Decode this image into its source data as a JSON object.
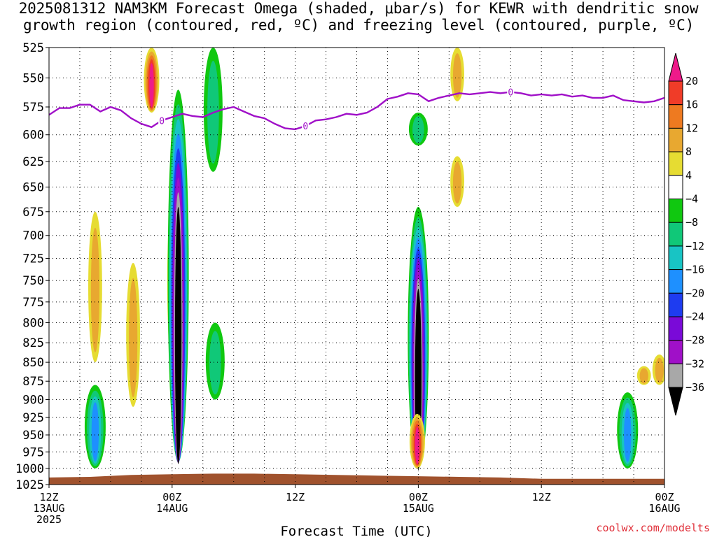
{
  "title": {
    "line1": "2025081312 NAM3KM Forecast Omega (shaded, μbar/s) for KEWR with dendritic snow",
    "line2": "growth region (contoured, red, ºC) and freezing level (contoured, purple, ºC)"
  },
  "credit": "coolwx.com/modelts",
  "chart_data": {
    "type": "heatmap",
    "title": "2025081312 NAM3KM Forecast Omega (shaded, μbar/s) for KEWR with dendritic snow growth region (contoured, red, ºC) and freezing level (contoured, purple, ºC)",
    "xlabel": "Forecast Time (UTC)",
    "ylabel": "",
    "x_unit": "hours from 2025-08-13 12Z",
    "xlim": [
      0,
      60
    ],
    "x_ticks": [
      {
        "x": 0,
        "label": [
          "12Z",
          "13AUG",
          "2025"
        ]
      },
      {
        "x": 12,
        "label": [
          "00Z",
          "14AUG"
        ]
      },
      {
        "x": 24,
        "label": [
          "12Z"
        ]
      },
      {
        "x": 36,
        "label": [
          "00Z",
          "15AUG"
        ]
      },
      {
        "x": 48,
        "label": [
          "12Z"
        ]
      },
      {
        "x": 60,
        "label": [
          "00Z",
          "16AUG"
        ]
      }
    ],
    "y_scale": "log",
    "ylim": [
      1025,
      525
    ],
    "y_ticks": [
      525,
      550,
      575,
      600,
      625,
      650,
      675,
      700,
      725,
      750,
      775,
      800,
      825,
      850,
      875,
      900,
      925,
      950,
      975,
      1000,
      1025
    ],
    "grid": true,
    "colorbar": {
      "placement": "right",
      "levels": [
        {
          "lo": 20,
          "hi": null,
          "color": "#ee1a8a"
        },
        {
          "lo": 16,
          "hi": 20,
          "color": "#f03c28"
        },
        {
          "lo": 12,
          "hi": 16,
          "color": "#ee7a20"
        },
        {
          "lo": 8,
          "hi": 12,
          "color": "#e8a830"
        },
        {
          "lo": 4,
          "hi": 8,
          "color": "#e6dc32"
        },
        {
          "lo": -4,
          "hi": 4,
          "color": "#ffffff"
        },
        {
          "lo": -8,
          "hi": -4,
          "color": "#10c810"
        },
        {
          "lo": -12,
          "hi": -8,
          "color": "#10c878"
        },
        {
          "lo": -16,
          "hi": -12,
          "color": "#18c4c4"
        },
        {
          "lo": -20,
          "hi": -16,
          "color": "#1e90ff"
        },
        {
          "lo": -24,
          "hi": -20,
          "color": "#1e3cf0"
        },
        {
          "lo": -28,
          "hi": -24,
          "color": "#7a0ad8"
        },
        {
          "lo": -32,
          "hi": -28,
          "color": "#a010c8"
        },
        {
          "lo": -36,
          "hi": -32,
          "color": "#a8a8a8"
        },
        {
          "lo": null,
          "hi": -36,
          "color": "#000000"
        }
      ],
      "tick_labels": [
        "20",
        "16",
        "12",
        "8",
        "4",
        "−4",
        "−8",
        "−12",
        "−16",
        "−20",
        "−24",
        "−28",
        "−32",
        "−36"
      ]
    },
    "freezing_level": {
      "color": "#a010c8",
      "label": "0",
      "label_at_x": [
        11,
        25,
        45
      ],
      "points": [
        [
          0,
          582
        ],
        [
          1,
          576
        ],
        [
          2,
          576
        ],
        [
          3,
          573
        ],
        [
          4,
          573
        ],
        [
          5,
          579
        ],
        [
          6,
          575
        ],
        [
          7,
          578
        ],
        [
          8,
          585
        ],
        [
          9,
          590
        ],
        [
          10,
          593
        ],
        [
          11,
          587
        ],
        [
          12,
          584
        ],
        [
          13,
          581
        ],
        [
          14,
          583
        ],
        [
          15,
          584
        ],
        [
          16,
          580
        ],
        [
          17,
          577
        ],
        [
          18,
          575
        ],
        [
          19,
          579
        ],
        [
          20,
          583
        ],
        [
          21,
          585
        ],
        [
          22,
          590
        ],
        [
          23,
          594
        ],
        [
          24,
          595
        ],
        [
          25,
          592
        ],
        [
          26,
          587
        ],
        [
          27,
          586
        ],
        [
          28,
          584
        ],
        [
          29,
          581
        ],
        [
          30,
          582
        ],
        [
          31,
          580
        ],
        [
          32,
          575
        ],
        [
          33,
          568
        ],
        [
          34,
          566
        ],
        [
          35,
          563
        ],
        [
          36,
          564
        ],
        [
          37,
          570
        ],
        [
          38,
          567
        ],
        [
          39,
          565
        ],
        [
          40,
          563
        ],
        [
          41,
          564
        ],
        [
          42,
          563
        ],
        [
          43,
          562
        ],
        [
          44,
          563
        ],
        [
          45,
          562
        ],
        [
          46,
          563
        ],
        [
          47,
          565
        ],
        [
          48,
          564
        ],
        [
          49,
          565
        ],
        [
          50,
          564
        ],
        [
          51,
          566
        ],
        [
          52,
          565
        ],
        [
          53,
          567
        ],
        [
          54,
          567
        ],
        [
          55,
          565
        ],
        [
          56,
          569
        ],
        [
          57,
          570
        ],
        [
          58,
          571
        ],
        [
          59,
          570
        ],
        [
          60,
          567
        ]
      ]
    },
    "terrain": {
      "color": "#a0522d",
      "points": [
        [
          0,
          1014
        ],
        [
          4,
          1013
        ],
        [
          8,
          1010
        ],
        [
          12,
          1009
        ],
        [
          16,
          1008
        ],
        [
          20,
          1008
        ],
        [
          24,
          1009
        ],
        [
          28,
          1010
        ],
        [
          32,
          1011
        ],
        [
          36,
          1012
        ],
        [
          40,
          1013
        ],
        [
          44,
          1014
        ],
        [
          48,
          1016
        ],
        [
          52,
          1016
        ],
        [
          56,
          1016
        ],
        [
          60,
          1016
        ]
      ]
    },
    "omega_features": [
      {
        "x": 8.2,
        "p_top": 730,
        "p_bot": 910,
        "omega_max": 8
      },
      {
        "x": 4.5,
        "p_top": 675,
        "p_bot": 850,
        "omega_max": 8
      },
      {
        "x": 10.0,
        "p_top": 525,
        "p_bot": 580,
        "omega_max": 20
      },
      {
        "x": 12.2,
        "p_top": 650,
        "p_bot": 870,
        "omega_max": 8
      },
      {
        "x": 12.6,
        "p_top": 560,
        "p_bot": 990,
        "omega_min": -44
      },
      {
        "x": 4.5,
        "p_top": 880,
        "p_bot": 1000,
        "omega_min": -16
      },
      {
        "x": 16.0,
        "p_top": 525,
        "p_bot": 635,
        "omega_min": -8
      },
      {
        "x": 16.2,
        "p_top": 800,
        "p_bot": 900,
        "omega_min": -8
      },
      {
        "x": 36.0,
        "p_top": 670,
        "p_bot": 1000,
        "omega_min": -44
      },
      {
        "x": 35.9,
        "p_top": 920,
        "p_bot": 1000,
        "omega_max": 20
      },
      {
        "x": 36.0,
        "p_top": 580,
        "p_bot": 610,
        "omega_min": -8
      },
      {
        "x": 39.8,
        "p_top": 525,
        "p_bot": 570,
        "omega_max": 8
      },
      {
        "x": 39.8,
        "p_top": 620,
        "p_bot": 670,
        "omega_max": 8
      },
      {
        "x": 56.4,
        "p_top": 890,
        "p_bot": 1000,
        "omega_min": -16
      },
      {
        "x": 59.5,
        "p_top": 840,
        "p_bot": 880,
        "omega_max": 8
      },
      {
        "x": 58.0,
        "p_top": 855,
        "p_bot": 880,
        "omega_max": 8
      }
    ]
  }
}
